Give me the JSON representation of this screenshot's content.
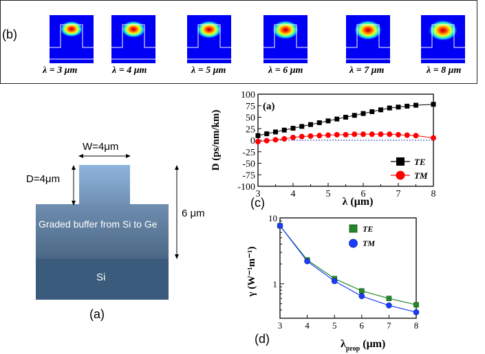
{
  "panel_b": {
    "label": "(b)",
    "modes": [
      "λ = 3 μm",
      "λ = 4 μm",
      "λ = 5 μm",
      "λ = 6 μm",
      "λ = 7 μm",
      "λ = 8 μm"
    ],
    "spot_scale": [
      0.55,
      0.65,
      0.75,
      0.85,
      0.95,
      1.05
    ]
  },
  "panel_a": {
    "label": "(a)",
    "width_label": "W=4μm",
    "depth_label": "D=4μm",
    "height_label": "6 μm",
    "buffer_label": "Graded buffer from Si to Ge",
    "substrate_label": "Si",
    "colors": {
      "ridge_top": "#8fb4dd",
      "ridge_bottom": "#6e8fb2",
      "buffer_top": "#6f8eb0",
      "buffer_bottom": "#4b6785",
      "substrate": "#3b5b7c"
    }
  },
  "panel_c": {
    "caption": "(c)",
    "inner_label": "(a)",
    "ylabel": "D (ps/nm/km)",
    "xlabel": "λ (μm)",
    "x_ticks": [
      "3",
      "4",
      "5",
      "6",
      "7",
      "8"
    ],
    "y_ticks": [
      "-100",
      "-75",
      "-50",
      "-25",
      "0",
      "25",
      "50",
      "75",
      "100"
    ]
  },
  "panel_d": {
    "caption": "(d)",
    "ylabel": "γ (W⁻¹m⁻¹)",
    "xlabel_main": "λ",
    "xlabel_sub": "prop",
    "xlabel_unit": "(μm)",
    "x_ticks": [
      "3",
      "4",
      "5",
      "6",
      "7",
      "8"
    ],
    "y_ticks": [
      "10",
      "1"
    ]
  },
  "chart_data": [
    {
      "type": "line",
      "title": "(a)",
      "xlabel": "λ (μm)",
      "ylabel": "D (ps/nm/km)",
      "xlim": [
        3,
        8
      ],
      "ylim": [
        -100,
        100
      ],
      "grid": false,
      "legend": "bottom-right",
      "series": [
        {
          "name": "TE",
          "color": "#000000",
          "marker": "square",
          "x": [
            3,
            3.25,
            3.5,
            3.75,
            4,
            4.25,
            4.5,
            4.75,
            5,
            5.25,
            5.5,
            5.75,
            6,
            6.25,
            6.5,
            6.75,
            7,
            7.25,
            7.5,
            8
          ],
          "y": [
            10,
            14,
            18,
            22,
            26,
            30,
            34,
            38,
            42,
            46,
            50,
            54,
            58,
            62,
            66,
            70,
            72,
            74,
            76,
            78
          ]
        },
        {
          "name": "TM",
          "color": "#ff0000",
          "marker": "circle",
          "x": [
            3,
            3.25,
            3.5,
            3.75,
            4,
            4.25,
            4.5,
            4.75,
            5,
            5.25,
            5.5,
            5.75,
            6,
            6.25,
            6.5,
            6.75,
            7,
            7.25,
            7.5,
            8
          ],
          "y": [
            -3,
            -1,
            1,
            3,
            6,
            8,
            9,
            10,
            11,
            12,
            12,
            13,
            13,
            13,
            13,
            13,
            12,
            11,
            10,
            5
          ]
        }
      ]
    },
    {
      "type": "line",
      "title": "(d)",
      "xlabel": "λprop (μm)",
      "ylabel": "γ (W⁻¹m⁻¹)",
      "xlim": [
        3,
        8
      ],
      "ylim": [
        0.3,
        10
      ],
      "yscale": "log",
      "grid": false,
      "legend": "top-right",
      "series": [
        {
          "name": "TE",
          "color": "#22882a",
          "marker": "square",
          "x": [
            3,
            4,
            5,
            6,
            7,
            8
          ],
          "y": [
            7.6,
            2.3,
            1.2,
            0.78,
            0.6,
            0.48
          ]
        },
        {
          "name": "TM",
          "color": "#1a3cff",
          "marker": "circle",
          "x": [
            3,
            4,
            5,
            6,
            7,
            8
          ],
          "y": [
            7.6,
            2.2,
            1.1,
            0.65,
            0.47,
            0.37
          ]
        }
      ]
    }
  ]
}
